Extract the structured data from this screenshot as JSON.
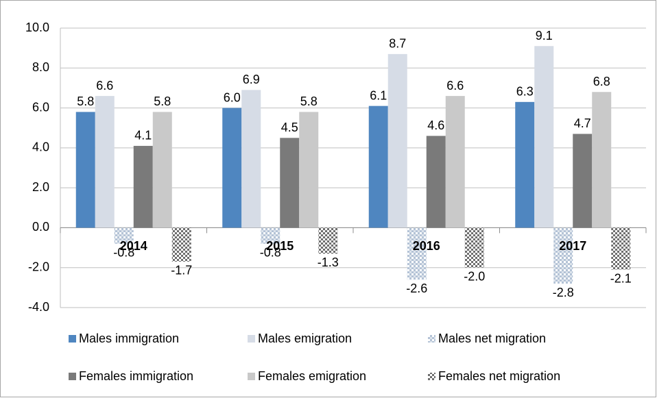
{
  "chart_data": {
    "type": "bar",
    "categories": [
      "2014",
      "2015",
      "2016",
      "2017"
    ],
    "series": [
      {
        "name": "Males immigration",
        "color": "#4f86c0",
        "values": [
          5.8,
          6.0,
          6.1,
          6.3
        ],
        "value_labels": [
          "5.8",
          "6.0",
          "6.1",
          "6.3"
        ]
      },
      {
        "name": "Males emigration",
        "color": "#d6dce6",
        "values": [
          6.6,
          6.9,
          8.7,
          9.1
        ],
        "value_labels": [
          "6.6",
          "6.9",
          "8.7",
          "9.1"
        ]
      },
      {
        "name": "Males net migration",
        "color": "#b4c3d6",
        "pattern": "dots",
        "values": [
          -0.8,
          -0.8,
          -2.6,
          -2.8
        ],
        "value_labels": [
          "-0.8",
          "-0.8",
          "-2.6",
          "-2.8"
        ]
      },
      {
        "name": "Females immigration",
        "color": "#7a7a7a",
        "values": [
          4.1,
          4.5,
          4.6,
          4.7
        ],
        "value_labels": [
          "4.1",
          "4.5",
          "4.6",
          "4.7"
        ]
      },
      {
        "name": "Females emigration",
        "color": "#c9c9c9",
        "values": [
          5.8,
          5.8,
          6.6,
          6.8
        ],
        "value_labels": [
          "5.8",
          "5.8",
          "6.6",
          "6.8"
        ]
      },
      {
        "name": "Females net migration",
        "color": "#6e6e6e",
        "pattern": "checker",
        "values": [
          -1.7,
          -1.3,
          -2.0,
          -2.1
        ],
        "value_labels": [
          "-1.7",
          "-1.3",
          "-2.0",
          "-2.1"
        ]
      }
    ],
    "ylim": [
      -4,
      10
    ],
    "yticks": [
      {
        "value": -4,
        "label": "-4.0"
      },
      {
        "value": -2,
        "label": "-2.0"
      },
      {
        "value": 0,
        "label": "0.0"
      },
      {
        "value": 2,
        "label": "2.0"
      },
      {
        "value": 4,
        "label": "4.0"
      },
      {
        "value": 6,
        "label": "6.0"
      },
      {
        "value": 8,
        "label": "8.0"
      },
      {
        "value": 10,
        "label": "10.0"
      }
    ],
    "grid": true,
    "legend": "bottom"
  }
}
